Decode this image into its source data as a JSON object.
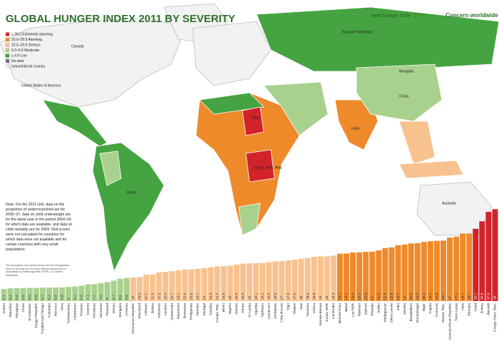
{
  "title": "GLOBAL HUNGER INDEX 2011 BY SEVERITY",
  "logos": [
    "welt hunger hilfe",
    "IFPRI",
    "Concern worldwide"
  ],
  "legend": [
    {
      "label": "≥ 30.0 Extremely alarming",
      "color": "#d2232a"
    },
    {
      "label": "20.0–29.9 Alarming",
      "color": "#ee8a2a"
    },
    {
      "label": "10.0–19.9 Serious",
      "color": "#f8c28f"
    },
    {
      "label": "5.0–9.9 Moderate",
      "color": "#a9d18e"
    },
    {
      "label": "≤ 4.9 Low",
      "color": "#45a441"
    },
    {
      "label": "No data",
      "color": "#6d6e70"
    },
    {
      "label": "Industrialized country",
      "color": "#f2f2f2"
    }
  ],
  "map_labels": [
    "Canada",
    "United States of America",
    "Brazil",
    "Russian Federation",
    "China",
    "India",
    "Australia",
    "Mongolia",
    "Congo, Dem. Rep.",
    "Chad"
  ],
  "note": "Note: For the 2011 GHI, data on the proportion of undernourished are for 2005–07, data on child underweight are for the latest year in the period 2004–09 for which data are available, and data on child mortality are for 2009. GHI scores were not calculated for countries for which data were not available and for certain countries with very small populations.",
  "disclaimer": "The boundaries and names shown and the designations used on this map do not imply official endorsement or acceptance by Welthungerhilfe, IFPRI, or Concern Worldwide.",
  "chart_data": {
    "type": "bar",
    "categories": [
      "Gabon",
      "Mauritius",
      "Paraguay",
      "China",
      "El Salvador",
      "Kyrgyz Republic",
      "Trinidad and Tobago",
      "Colombia",
      "Morocco",
      "Peru",
      "Turkmenistan",
      "Uzbekistan",
      "Panama",
      "Guyana",
      "Honduras",
      "Suriname",
      "Thailand",
      "Ghana",
      "Mongolia",
      "Armenia",
      "Dominican Republic",
      "Swaziland",
      "Vietnam",
      "Bolivia",
      "Indonesia",
      "Lesotho",
      "Guatemala",
      "Mauritania",
      "Botswana",
      "Philippines",
      "Namibia",
      "Senegal",
      "Gambia",
      "Congo, Rep.",
      "Benin",
      "Nigeria",
      "Guinea",
      "Kenya",
      "Sri Lanka",
      "Uganda",
      "Tajikistan",
      "Cameroon",
      "Zimbabwe",
      "Côte d'Ivoire",
      "Togo",
      "Malawi",
      "Mali",
      "Tanzania",
      "Liberia",
      "Guinea-Bissau",
      "Korea, DPR",
      "Cambodia",
      "Burkina Faso",
      "Nepal",
      "Lao PDR",
      "Pakistan",
      "Djibouti",
      "Rwanda",
      "Sudan",
      "Madagascar",
      "Sierra Leone",
      "India",
      "Zambia",
      "Bangladesh",
      "Mozambique",
      "Niger",
      "Angola",
      "Comoros",
      "Yemen, Rep.",
      "Central African Republic",
      "Timor-Leste",
      "Haiti",
      "Ethiopia",
      "Chad",
      "Eritrea",
      "Burundi",
      "Congo, Dem. Rep."
    ],
    "values": [
      5.1,
      5.4,
      5.5,
      5.5,
      5.6,
      5.6,
      5.7,
      5.7,
      5.8,
      5.8,
      6.0,
      6.2,
      6.5,
      7.1,
      7.2,
      7.6,
      8.0,
      8.7,
      9.5,
      9.8,
      10.0,
      10.2,
      11.2,
      11.3,
      12.2,
      12.4,
      12.7,
      13.1,
      13.4,
      13.5,
      13.7,
      14.0,
      14.3,
      14.7,
      14.8,
      15.0,
      15.5,
      15.9,
      16.0,
      16.1,
      16.2,
      16.5,
      16.9,
      17.0,
      17.3,
      17.6,
      18.0,
      18.3,
      18.8,
      19.0,
      19.0,
      19.3,
      20.1,
      20.2,
      20.6,
      20.7,
      20.9,
      21.0,
      21.5,
      22.5,
      22.8,
      23.7,
      24.0,
      24.5,
      24.6,
      25.1,
      25.4,
      25.6,
      25.7,
      27.0,
      27.3,
      28.7,
      28.7,
      30.7,
      33.9,
      37.9,
      39.0
    ],
    "colors": [
      "#a9d18e",
      "#a9d18e",
      "#a9d18e",
      "#a9d18e",
      "#a9d18e",
      "#a9d18e",
      "#a9d18e",
      "#a9d18e",
      "#a9d18e",
      "#a9d18e",
      "#a9d18e",
      "#a9d18e",
      "#a9d18e",
      "#a9d18e",
      "#a9d18e",
      "#a9d18e",
      "#a9d18e",
      "#a9d18e",
      "#a9d18e",
      "#a9d18e",
      "#f8c28f",
      "#f8c28f",
      "#f8c28f",
      "#f8c28f",
      "#f8c28f",
      "#f8c28f",
      "#f8c28f",
      "#f8c28f",
      "#f8c28f",
      "#f8c28f",
      "#f8c28f",
      "#f8c28f",
      "#f8c28f",
      "#f8c28f",
      "#f8c28f",
      "#f8c28f",
      "#f8c28f",
      "#f8c28f",
      "#f8c28f",
      "#f8c28f",
      "#f8c28f",
      "#f8c28f",
      "#f8c28f",
      "#f8c28f",
      "#f8c28f",
      "#f8c28f",
      "#f8c28f",
      "#f8c28f",
      "#f8c28f",
      "#f8c28f",
      "#f8c28f",
      "#f8c28f",
      "#ee8a2a",
      "#ee8a2a",
      "#ee8a2a",
      "#ee8a2a",
      "#ee8a2a",
      "#ee8a2a",
      "#ee8a2a",
      "#ee8a2a",
      "#ee8a2a",
      "#ee8a2a",
      "#ee8a2a",
      "#ee8a2a",
      "#ee8a2a",
      "#ee8a2a",
      "#ee8a2a",
      "#ee8a2a",
      "#ee8a2a",
      "#ee8a2a",
      "#ee8a2a",
      "#ee8a2a",
      "#ee8a2a",
      "#d2232a",
      "#d2232a",
      "#d2232a",
      "#d2232a"
    ]
  }
}
